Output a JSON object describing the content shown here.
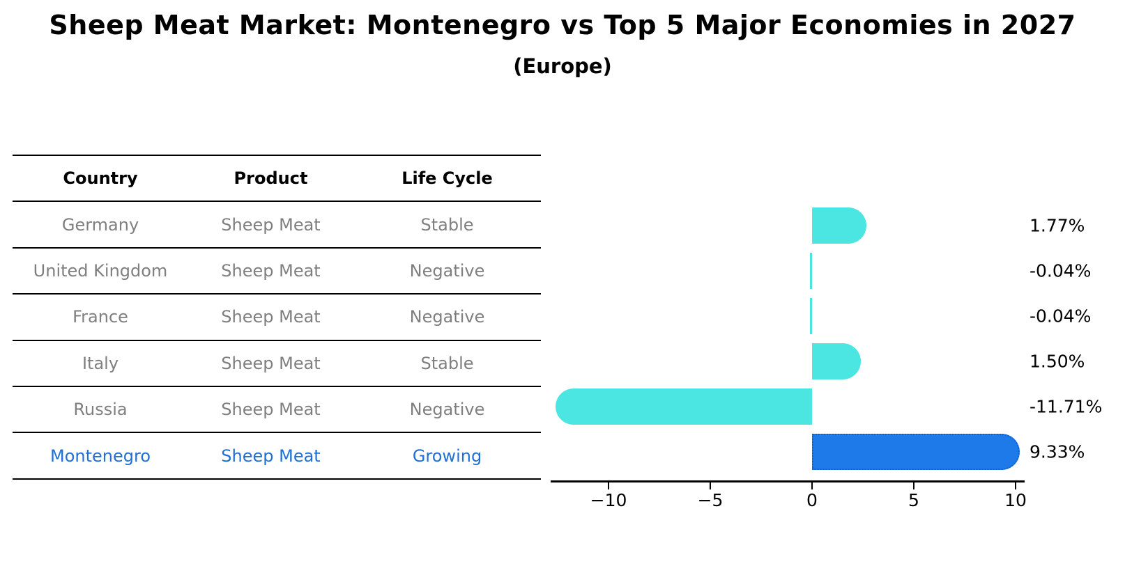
{
  "title": "Sheep Meat Market: Montenegro vs Top 5 Major Economies in 2027",
  "subtitle": "(Europe)",
  "table": {
    "headers": [
      "Country",
      "Product",
      "Life Cycle"
    ],
    "rows": [
      {
        "country": "Germany",
        "product": "Sheep Meat",
        "life_cycle": "Stable",
        "highlight": false
      },
      {
        "country": "United Kingdom",
        "product": "Sheep Meat",
        "life_cycle": "Negative",
        "highlight": false
      },
      {
        "country": "France",
        "product": "Sheep Meat",
        "life_cycle": "Negative",
        "highlight": false
      },
      {
        "country": "Italy",
        "product": "Sheep Meat",
        "life_cycle": "Stable",
        "highlight": false
      },
      {
        "country": "Russia",
        "product": "Sheep Meat",
        "life_cycle": "Negative",
        "highlight": false
      },
      {
        "country": "Montenegro",
        "product": "Sheep Meat",
        "life_cycle": "Growing",
        "highlight": true
      }
    ]
  },
  "chart_data": {
    "type": "bar",
    "orientation": "horizontal",
    "title": "",
    "xlabel": "",
    "ylabel": "",
    "categories": [
      "Germany",
      "United Kingdom",
      "France",
      "Italy",
      "Russia",
      "Montenegro"
    ],
    "values": [
      1.77,
      -0.04,
      -0.04,
      1.5,
      -11.71,
      9.33
    ],
    "value_labels": [
      "1.77%",
      "-0.04%",
      "-0.04%",
      "1.50%",
      "-11.71%",
      "9.33%"
    ],
    "x_ticks": [
      -10,
      -5,
      0,
      5,
      10
    ],
    "x_tick_labels": [
      "−10",
      "−5",
      "0",
      "5",
      "10"
    ],
    "xlim": [
      -12.8,
      10.4
    ],
    "grid": false,
    "legend": null,
    "bar_color": "#4BE6E2",
    "highlight_index": 5,
    "highlight_bar_color": "#1E7AE8",
    "highlight_edge_color": "#0E5FD6"
  },
  "colors": {
    "header_text": "#000000",
    "cell_text": "#7f7f7f",
    "highlight_text": "#1f6fd6",
    "axis": "#000000"
  }
}
